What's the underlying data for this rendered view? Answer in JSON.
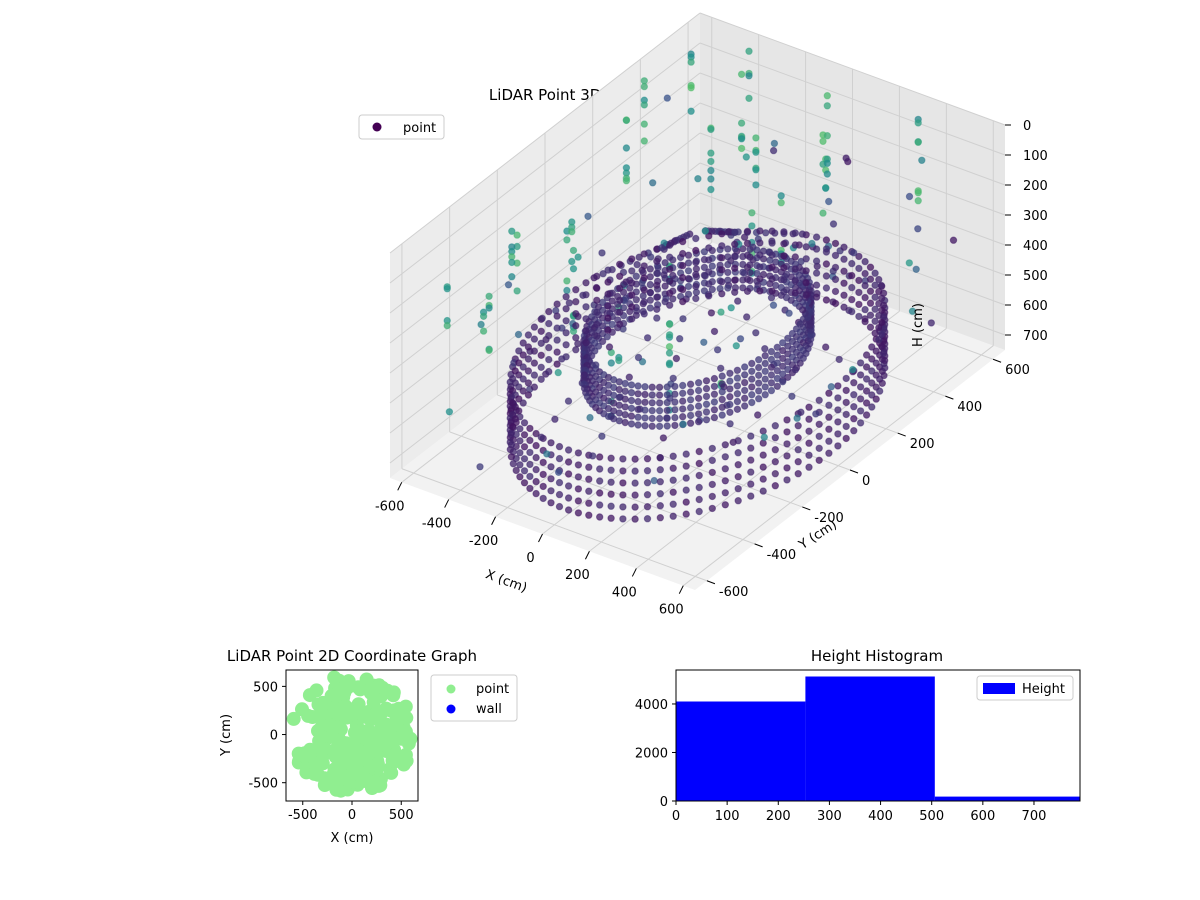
{
  "chart_data": [
    {
      "type": "scatter",
      "projection": "3d",
      "title": "LiDAR Point 3D Coordinate Graph",
      "xlabel": "X (cm)",
      "ylabel": "Y (cm)",
      "zlabel": "H (cm)",
      "xlim": [
        -650,
        650
      ],
      "ylim": [
        -650,
        650
      ],
      "zlim": [
        0,
        750
      ],
      "z_inverted": true,
      "xticks": [
        -600,
        -400,
        -200,
        0,
        200,
        400,
        600
      ],
      "yticks": [
        -600,
        -400,
        -200,
        0,
        200,
        400,
        600
      ],
      "zticks": [
        0,
        100,
        200,
        300,
        400,
        500,
        600,
        700
      ],
      "grid": true,
      "colormap": "viridis",
      "legend": {
        "placement": "upper-left",
        "entries": [
          {
            "label": "point",
            "color": "#440154"
          }
        ]
      },
      "series": [
        {
          "name": "point",
          "structures": [
            {
              "kind": "ring",
              "cx": 0,
              "cy": 0,
              "radius": 560,
              "h_min": 520,
              "h_max": 720,
              "color_value": 0.05
            },
            {
              "kind": "ring",
              "cx": 0,
              "cy": 0,
              "radius": 340,
              "h_min": 430,
              "h_max": 560,
              "color_value": 0.1
            },
            {
              "kind": "spokes",
              "cx": 0,
              "cy": 0,
              "r_min": 120,
              "r_max": 560,
              "h_min": 220,
              "h_max": 520,
              "count": 16,
              "color_value": 0.08
            },
            {
              "kind": "poles",
              "h_min": 0,
              "h_max": 300,
              "color_value": 0.45
            }
          ]
        }
      ]
    },
    {
      "type": "scatter",
      "title": "LiDAR Point 2D Coordinate Graph",
      "xlabel": "X (cm)",
      "ylabel": "Y (cm)",
      "xlim": [
        -670,
        670
      ],
      "ylim": [
        -690,
        670
      ],
      "xticks": [
        -500,
        0,
        500
      ],
      "yticks": [
        -500,
        0,
        500
      ],
      "legend": {
        "placement": "outside-right",
        "entries": [
          {
            "label": "point",
            "color": "#90ee90"
          },
          {
            "label": "wall",
            "color": "#0000ff"
          }
        ]
      },
      "series": [
        {
          "name": "point",
          "color": "#90ee90",
          "region": {
            "cx": 0,
            "cy": 0,
            "radius": 620
          }
        },
        {
          "name": "wall",
          "color": "#0000ff",
          "values": []
        }
      ]
    },
    {
      "type": "bar",
      "subtype": "histogram",
      "title": "Height Histogram",
      "xlim": [
        0,
        790
      ],
      "ylim": [
        0,
        5400
      ],
      "xticks": [
        0,
        100,
        200,
        300,
        400,
        500,
        600,
        700
      ],
      "yticks": [
        0,
        2000,
        4000
      ],
      "bins": [
        {
          "start": 0,
          "end": 253,
          "count": 4100
        },
        {
          "start": 253,
          "end": 506,
          "count": 5130
        },
        {
          "start": 506,
          "end": 790,
          "count": 180
        }
      ],
      "color": "#0000ff",
      "legend": {
        "placement": "upper-right",
        "entries": [
          {
            "label": "Height",
            "color": "#0000ff"
          }
        ]
      }
    }
  ]
}
